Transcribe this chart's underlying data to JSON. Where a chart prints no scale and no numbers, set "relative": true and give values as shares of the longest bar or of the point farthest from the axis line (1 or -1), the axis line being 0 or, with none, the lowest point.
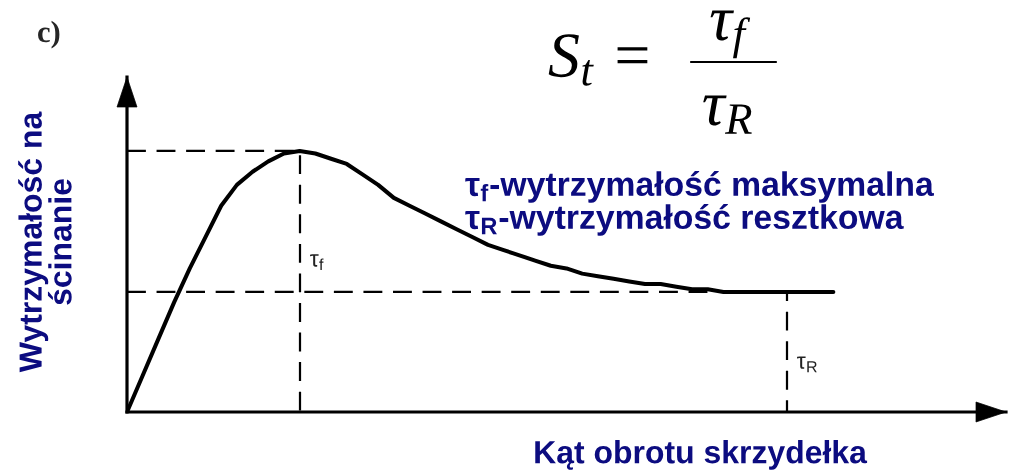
{
  "chart_data": {
    "type": "line",
    "title": "c)",
    "xlabel": "Kąt obrotu skrzydełka",
    "ylabel": "Wytrzymałość na\nścinanie",
    "relative": true,
    "tick_labels": false,
    "categories": [
      null,
      null,
      null,
      null,
      null,
      null,
      null,
      null,
      null,
      null,
      null,
      null,
      null,
      null,
      null,
      null,
      null,
      null,
      null,
      null,
      null,
      null,
      null,
      null,
      null,
      null,
      null,
      null,
      null,
      null,
      null,
      null,
      null,
      null,
      null,
      null,
      null,
      null,
      null,
      null,
      null,
      null,
      null,
      null,
      null,
      null,
      null,
      null,
      null,
      null,
      null,
      null,
      null,
      null,
      null,
      null,
      null
    ],
    "series": [
      {
        "color": "#000000",
        "values": [
          0,
          0.14,
          0.28,
          0.42,
          0.55,
          0.67,
          0.79,
          0.87,
          0.92,
          0.96,
          0.99,
          1,
          0.99,
          0.97,
          0.95,
          0.91,
          0.87,
          0.82,
          0.79,
          0.76,
          0.73,
          0.7,
          0.67,
          0.64,
          0.62,
          0.6,
          0.58,
          0.56,
          0.55,
          0.53,
          0.52,
          0.51,
          0.5,
          0.49,
          0.49,
          0.48,
          0.47,
          0.47,
          0.46,
          0.46,
          0.46,
          0.46,
          0.46,
          0.46,
          0.46,
          0.46,
          null,
          null,
          null,
          null,
          null,
          null,
          null,
          null,
          null,
          null,
          null
        ]
      }
    ],
    "ref_lines": [
      {
        "axis": "y",
        "value": 1,
        "label": "τ$_{f}$",
        "color": "#000000",
        "line_style": "dashed"
      },
      {
        "axis": "y",
        "value": 0.46,
        "label": "τ$_{R}$",
        "color": "#000000",
        "line_style": "dashed"
      }
    ],
    "annotations": [
      "S$_{t}$ =",
      "τ$_{f}$",
      "τ$_{R}$",
      "τ$_{f}$-wytrzymałość maksymalna",
      "τ$_{R}$-wytrzymałość resztkowa"
    ]
  }
}
